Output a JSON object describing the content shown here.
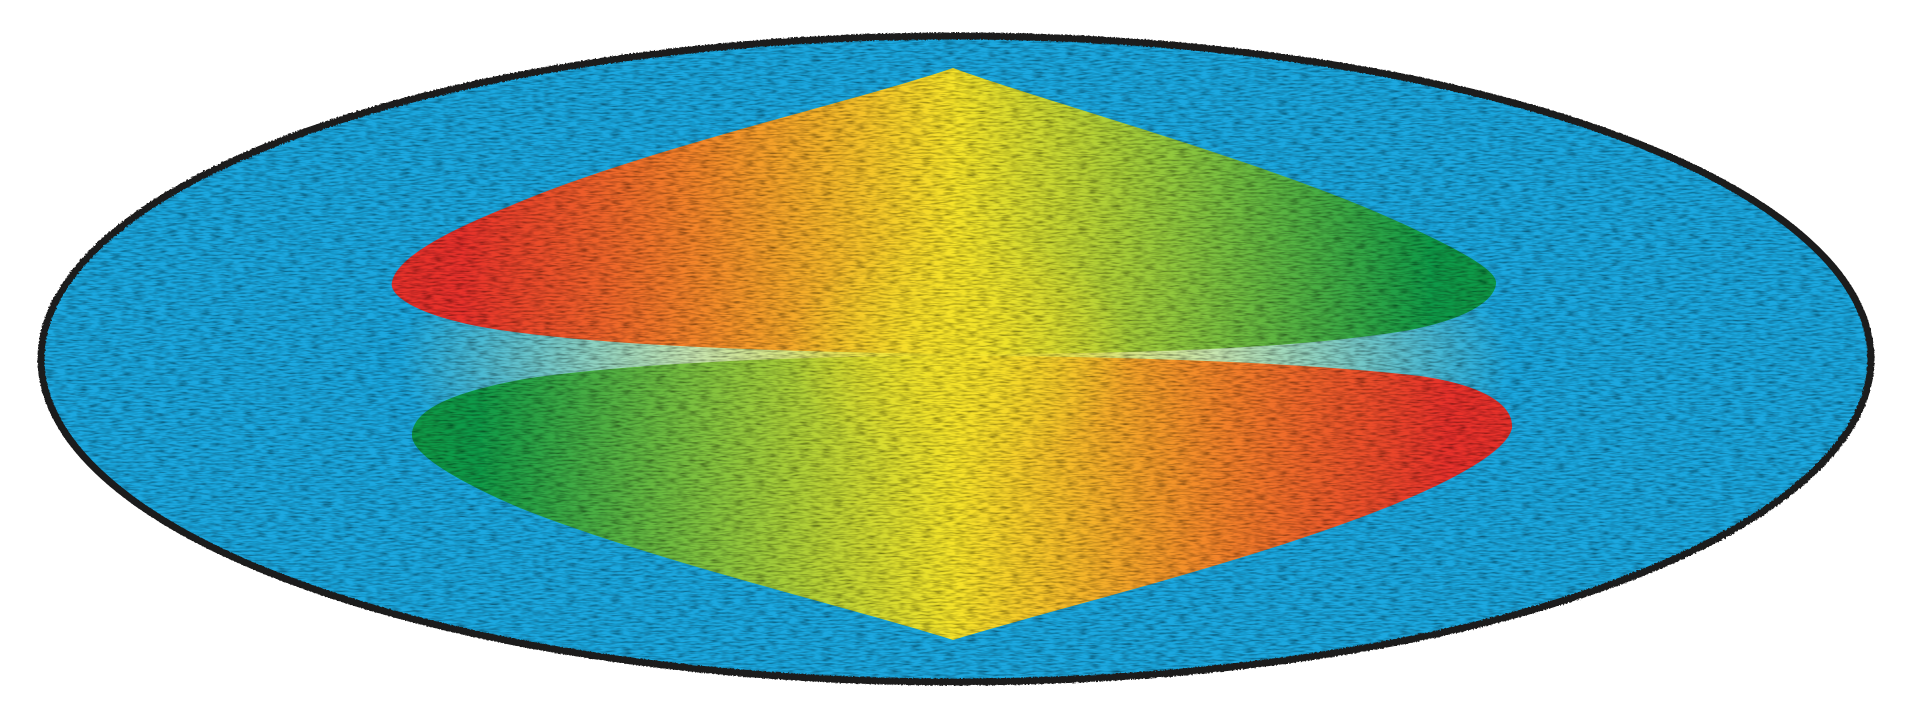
{
  "figure": {
    "colors": {
      "background": "#ffffff",
      "outline": "#1a1a1a",
      "outer_blue": "#1ba8e0",
      "outer_pale": "#c8e6b0",
      "red": "#e8312c",
      "orange": "#f4882a",
      "yellow": "#f7e52a",
      "light_green": "#8cc63e",
      "green": "#0e9a48"
    },
    "icons": {
      "outer_disc": "ellipse-shape",
      "top_left_wedge": "lens-half-shape",
      "top_right_wedge": "lens-half-shape",
      "bottom_left_wedge": "lens-half-shape",
      "bottom_right_wedge": "lens-half-shape"
    },
    "texture": "canvas"
  }
}
